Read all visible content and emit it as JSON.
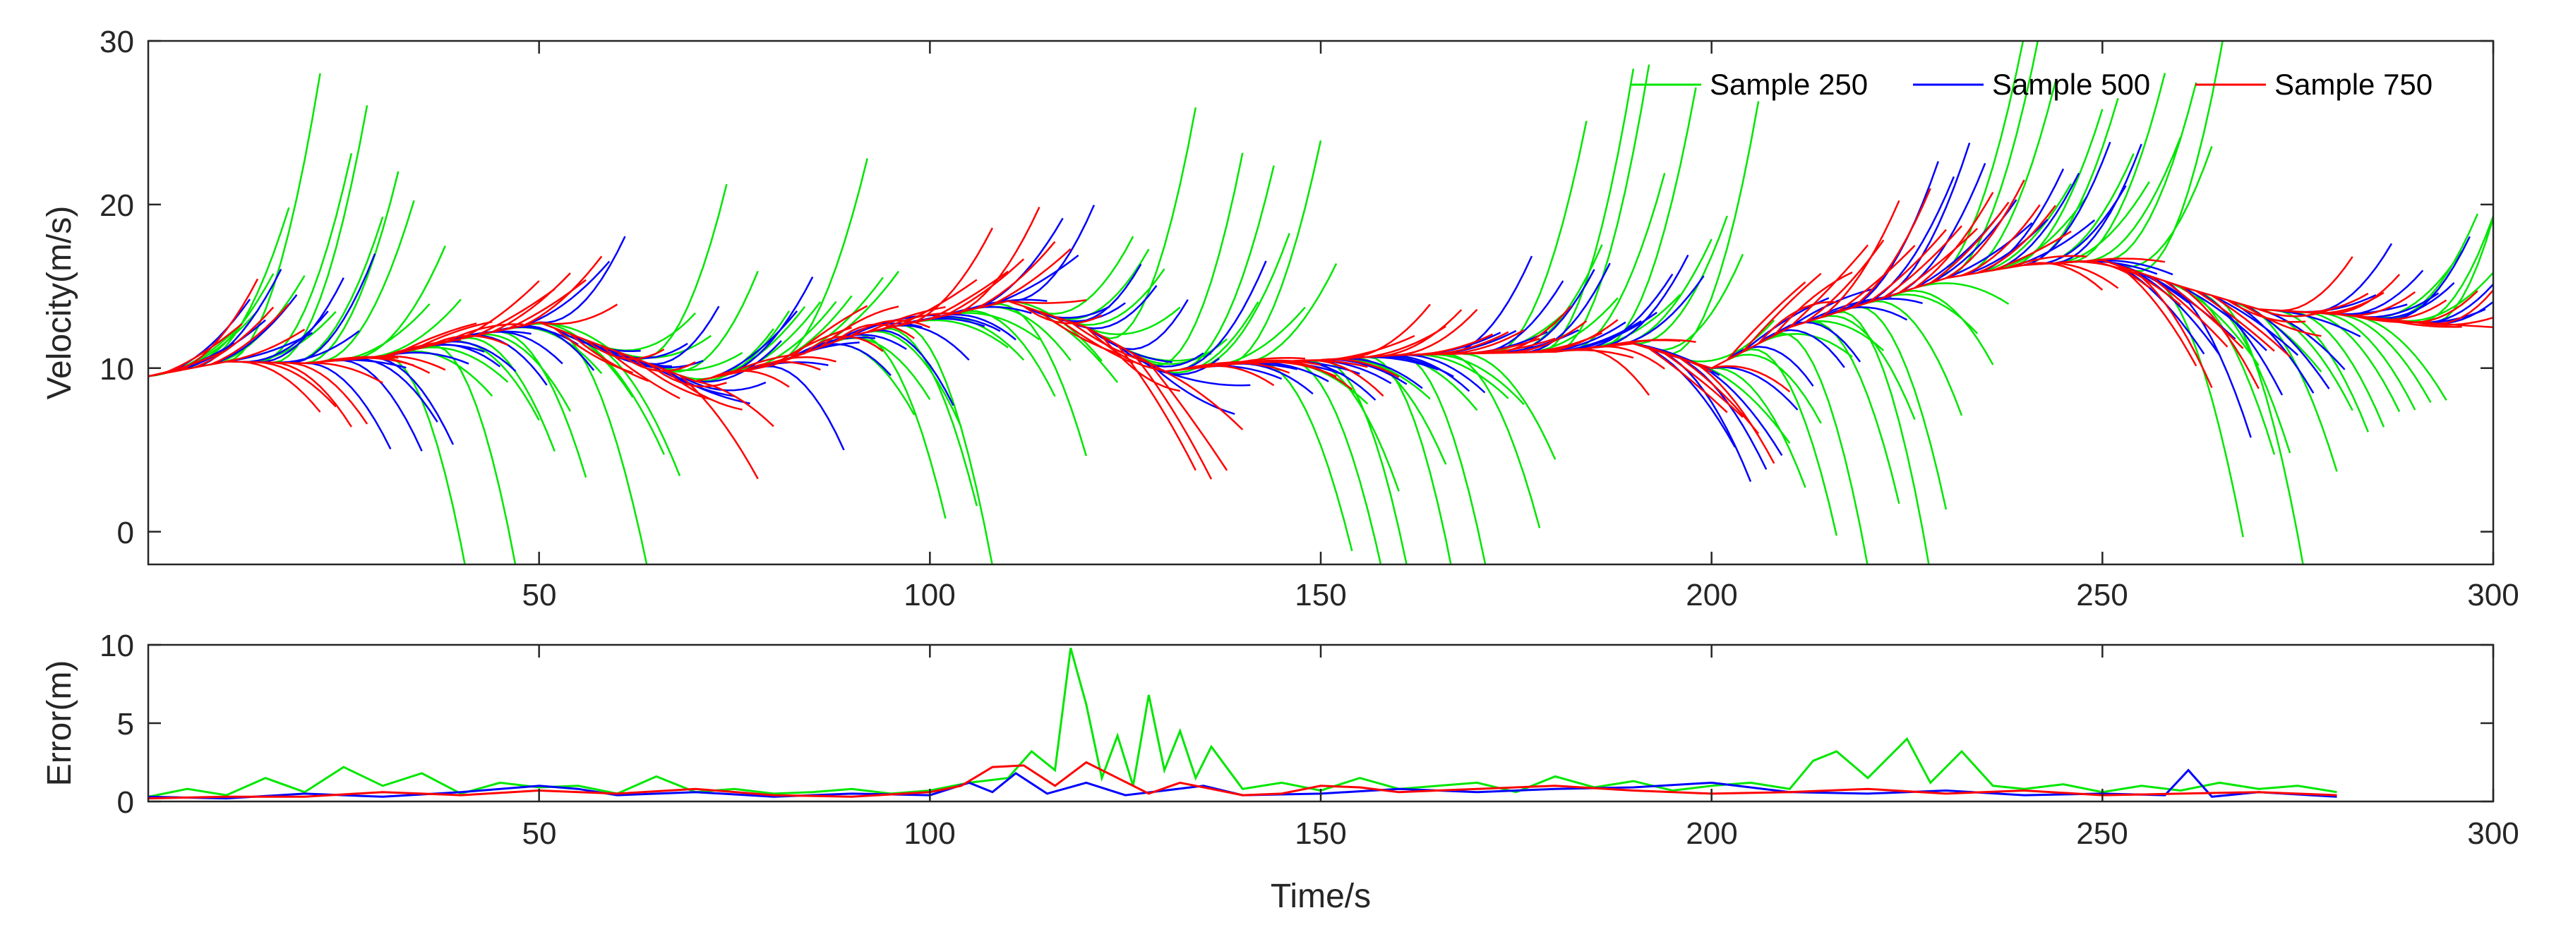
{
  "chart_data": [
    {
      "type": "line",
      "name": "velocity-chart",
      "ylabel": "Velocity(m/s)",
      "xlabel": "",
      "xlim": [
        0,
        300
      ],
      "ylim": [
        -2,
        30
      ],
      "xticks": [
        50,
        100,
        150,
        200,
        250,
        300
      ],
      "xtick_labels": [
        "50",
        "100",
        "150",
        "200",
        "250",
        "300"
      ],
      "yticks": [
        0,
        10,
        20,
        30
      ],
      "ytick_labels": [
        "0",
        "10",
        "20",
        "30"
      ],
      "legend_position": "top-right",
      "legend": [
        "Sample 250",
        "Sample 500",
        "Sample 750"
      ],
      "colors": [
        "#00e600",
        "#0000ff",
        "#ff0000"
      ],
      "trajectory": {
        "t": [
          0,
          10,
          20,
          30,
          40,
          50,
          60,
          70,
          80,
          90,
          100,
          110,
          120,
          130,
          140,
          150,
          160,
          170,
          180,
          190,
          200,
          210,
          220,
          230,
          240,
          250,
          260,
          270,
          280,
          290,
          300
        ],
        "v": [
          9.5,
          10.4,
          10.3,
          10.7,
          11.8,
          12.8,
          11.0,
          9.2,
          10.2,
          12.0,
          13.0,
          14.1,
          12.5,
          9.8,
          10.3,
          10.5,
          10.8,
          10.9,
          11.0,
          11.5,
          10.0,
          12.5,
          14.0,
          15.5,
          16.3,
          16.6,
          15.0,
          13.6,
          13.3,
          12.8,
          12.5
        ]
      },
      "series": [
        {
          "name": "Sample 250",
          "color": "#00e600",
          "spread_max": 18,
          "horizon": 12
        },
        {
          "name": "Sample 500",
          "color": "#0000ff",
          "spread_max": 7,
          "horizon": 11
        },
        {
          "name": "Sample 750",
          "color": "#ff0000",
          "spread_max": 4,
          "horizon": 10
        }
      ]
    },
    {
      "type": "line",
      "name": "error-chart",
      "xlabel": "Time/s",
      "ylabel": "Error(m)",
      "xlim": [
        0,
        300
      ],
      "ylim": [
        0,
        10
      ],
      "xticks": [
        50,
        100,
        150,
        200,
        250,
        300
      ],
      "xtick_labels": [
        "50",
        "100",
        "150",
        "200",
        "250",
        "300"
      ],
      "yticks": [
        0,
        5,
        10
      ],
      "ytick_labels": [
        "0",
        "5",
        "10"
      ],
      "series": [
        {
          "name": "Sample 250",
          "color": "#00e600",
          "x": [
            0,
            5,
            10,
            15,
            20,
            25,
            30,
            35,
            40,
            45,
            50,
            55,
            60,
            65,
            70,
            75,
            80,
            85,
            90,
            95,
            100,
            105,
            110,
            113,
            116,
            118,
            120,
            122,
            124,
            126,
            128,
            130,
            132,
            134,
            136,
            140,
            145,
            150,
            155,
            160,
            165,
            170,
            175,
            180,
            185,
            190,
            195,
            200,
            205,
            210,
            213,
            216,
            220,
            225,
            228,
            232,
            236,
            240,
            245,
            250,
            255,
            260,
            265,
            270,
            275,
            280
          ],
          "y": [
            0.3,
            0.8,
            0.4,
            1.5,
            0.6,
            2.2,
            1.0,
            1.8,
            0.5,
            1.2,
            0.9,
            1.0,
            0.5,
            1.6,
            0.6,
            0.8,
            0.5,
            0.6,
            0.8,
            0.5,
            0.7,
            1.2,
            1.5,
            3.2,
            2.0,
            9.8,
            6.2,
            1.5,
            4.2,
            1.0,
            6.8,
            2.0,
            4.5,
            1.5,
            3.5,
            0.8,
            1.2,
            0.7,
            1.5,
            0.8,
            1.0,
            1.2,
            0.6,
            1.6,
            0.9,
            1.3,
            0.7,
            1.0,
            1.2,
            0.8,
            2.6,
            3.2,
            1.5,
            4.0,
            1.2,
            3.2,
            1.0,
            0.8,
            1.1,
            0.6,
            1.0,
            0.7,
            1.2,
            0.8,
            1.0,
            0.6
          ]
        },
        {
          "name": "Sample 500",
          "color": "#0000ff",
          "x": [
            0,
            10,
            20,
            30,
            40,
            50,
            55,
            60,
            70,
            80,
            90,
            100,
            105,
            108,
            111,
            115,
            120,
            125,
            130,
            135,
            140,
            150,
            160,
            170,
            180,
            190,
            200,
            210,
            220,
            230,
            240,
            250,
            258,
            261,
            264,
            270,
            280
          ],
          "y": [
            0.3,
            0.2,
            0.5,
            0.3,
            0.6,
            1.0,
            0.8,
            0.4,
            0.6,
            0.3,
            0.5,
            0.4,
            1.2,
            0.6,
            1.8,
            0.5,
            1.2,
            0.4,
            0.7,
            1.0,
            0.4,
            0.5,
            0.8,
            0.6,
            0.8,
            0.9,
            1.2,
            0.6,
            0.5,
            0.7,
            0.4,
            0.5,
            0.4,
            2.0,
            0.3,
            0.6,
            0.3
          ]
        },
        {
          "name": "Sample 750",
          "color": "#ff0000",
          "x": [
            0,
            10,
            20,
            30,
            40,
            50,
            60,
            70,
            80,
            90,
            100,
            104,
            108,
            112,
            116,
            120,
            124,
            128,
            132,
            136,
            140,
            145,
            150,
            155,
            160,
            170,
            180,
            190,
            200,
            210,
            220,
            230,
            240,
            250,
            260,
            270,
            280
          ],
          "y": [
            0.2,
            0.3,
            0.3,
            0.6,
            0.4,
            0.7,
            0.5,
            0.8,
            0.4,
            0.3,
            0.6,
            1.0,
            2.2,
            2.3,
            1.0,
            2.5,
            1.5,
            0.5,
            1.2,
            0.8,
            0.4,
            0.5,
            1.0,
            0.9,
            0.6,
            0.8,
            1.0,
            0.7,
            0.5,
            0.6,
            0.8,
            0.5,
            0.7,
            0.4,
            0.5,
            0.6,
            0.4
          ]
        }
      ]
    }
  ]
}
